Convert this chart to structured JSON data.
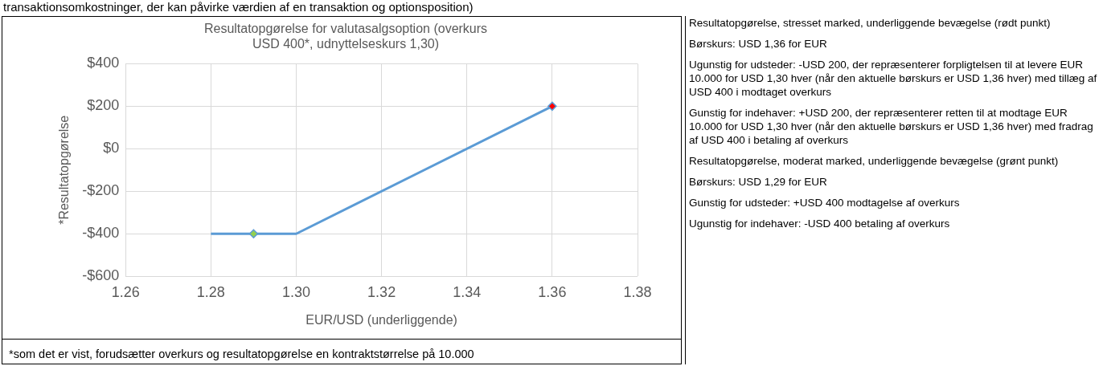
{
  "chart_data": [
    {
      "type": "line",
      "title": "Resultatopgørelse for valutasalgsoption (overkurs\nUSD 400*, udnyttelseskurs 1,30)",
      "xlabel": "EUR/USD (underliggende)",
      "ylabel": "*Resultatopgørelse",
      "series": [
        {
          "type": "line",
          "x": [
            1.28,
            1.3,
            1.36
          ],
          "values": [
            -400,
            -400,
            200
          ],
          "color": "#5b9bd5",
          "marker": "none"
        },
        {
          "type": "scatter",
          "x": [
            1.29
          ],
          "values": [
            -400
          ],
          "color": "#92d050",
          "marker": "diamond"
        },
        {
          "type": "scatter",
          "x": [
            1.36
          ],
          "values": [
            200
          ],
          "color": "#ff0000",
          "marker": "diamond"
        }
      ],
      "xlim": [
        1.26,
        1.38
      ],
      "xticks": [
        {
          "value": 1.26,
          "label": "1.26"
        },
        {
          "value": 1.28,
          "label": "1.28"
        },
        {
          "value": 1.3,
          "label": "1.30"
        },
        {
          "value": 1.32,
          "label": "1.32"
        },
        {
          "value": 1.34,
          "label": "1.34"
        },
        {
          "value": 1.36,
          "label": "1.36"
        },
        {
          "value": 1.38,
          "label": "1.38"
        }
      ],
      "ylim": [
        -600,
        400
      ],
      "yticks": [
        {
          "value": -600,
          "label": "-$600"
        },
        {
          "value": -400,
          "label": "-$400"
        },
        {
          "value": -200,
          "label": "-$200"
        },
        {
          "value": 0,
          "label": "$0"
        },
        {
          "value": 200,
          "label": "$200"
        },
        {
          "value": 400,
          "label": "$400"
        }
      ],
      "grid": true,
      "legend": false,
      "annotations": [
        "transaktionsomkostninger, der kan påvirke værdien af en transaktion og optionsposition)",
        "*som det er vist, forudsætter overkurs og resultatopgørelse en kontraktstørrelse på 10.000"
      ]
    },
    {
      "type": "other",
      "annotations": [
        "Resultatopgørelse, stresset marked, underliggende bevægelse (rødt punkt)",
        "Børskurs: USD 1,36 for EUR",
        "Ugunstig for udsteder: -USD 200, der repræsenterer forpligtelsen til at levere EUR 10.000 for USD 1,30 hver (når den aktuelle børskurs er USD 1,36 hver) med tillæg af USD 400 i modtaget overkurs",
        "Gunstig for indehaver: +USD 200, der repræsenterer retten til at modtage EUR 10.000 for USD 1,30 hver (når den aktuelle børskurs er USD 1,36 hver) med fradrag af USD 400 i betaling af overkurs",
        "Resultatopgørelse, moderat marked, underliggende bevægelse (grønt punkt)",
        "Børskurs: USD 1,29 for EUR",
        "Gunstig for udsteder: +USD 400 modtagelse af overkurs",
        "Ugunstig for indehaver: -USD 400 betaling af overkurs"
      ]
    }
  ]
}
